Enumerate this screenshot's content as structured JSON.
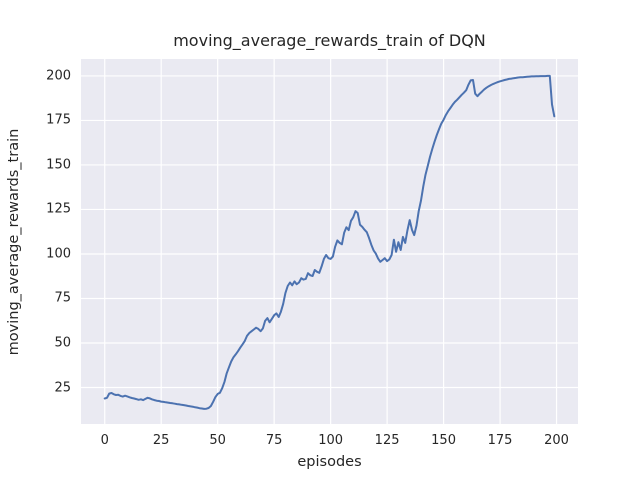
{
  "figure": {
    "title": "moving_average_rewards_train of DQN",
    "xlabel": "episodes",
    "ylabel": "moving_average_rewards_train"
  },
  "chart_data": {
    "type": "line",
    "title": "moving_average_rewards_train of DQN",
    "xlabel": "episodes",
    "ylabel": "moving_average_rewards_train",
    "legend": "none",
    "grid": true,
    "xticks": [
      0,
      25,
      50,
      75,
      100,
      125,
      150,
      175,
      200
    ],
    "yticks": [
      25,
      50,
      75,
      100,
      125,
      150,
      175,
      200
    ],
    "xlim": [
      -10.5,
      209.5
    ],
    "ylim": [
      4.5,
      209.5
    ],
    "style": {
      "figure_bg": "#ffffff",
      "plot_bg": "#eaeaf2",
      "grid_color": "#ffffff",
      "line_color": "#4c72b0",
      "text_color": "#262626",
      "line_width": 2
    },
    "series": [
      {
        "name": "moving_average_rewards_train",
        "x_start": 0,
        "x_step": 1,
        "values": [
          18.8,
          19.2,
          21.6,
          21.9,
          21.2,
          20.8,
          20.9,
          20.3,
          19.9,
          20.4,
          20.0,
          19.5,
          19.1,
          18.8,
          18.5,
          18.1,
          18.4,
          17.9,
          18.6,
          19.2,
          18.9,
          18.3,
          17.9,
          17.6,
          17.4,
          17.1,
          16.9,
          16.7,
          16.5,
          16.3,
          16.1,
          15.9,
          15.7,
          15.5,
          15.3,
          15.1,
          14.9,
          14.6,
          14.4,
          14.2,
          13.9,
          13.7,
          13.4,
          13.2,
          13.0,
          13.1,
          13.5,
          14.6,
          17.0,
          19.6,
          21.4,
          22.0,
          24.6,
          28.2,
          33.0,
          36.4,
          39.6,
          42.0,
          43.6,
          45.4,
          47.4,
          49.2,
          51.2,
          54.0,
          55.6,
          56.6,
          57.6,
          58.6,
          57.9,
          56.6,
          58.2,
          62.4,
          64.0,
          61.6,
          63.6,
          65.6,
          66.6,
          64.6,
          67.6,
          72.0,
          78.0,
          82.0,
          84.0,
          82.4,
          84.6,
          83.0,
          84.0,
          86.4,
          85.6,
          86.0,
          89.2,
          88.0,
          87.6,
          91.0,
          90.0,
          89.4,
          93.0,
          97.2,
          99.4,
          97.6,
          97.2,
          98.6,
          104.0,
          107.6,
          106.2,
          105.4,
          112.0,
          115.0,
          113.4,
          118.6,
          120.6,
          124.0,
          123.0,
          116.4,
          115.2,
          113.6,
          112.2,
          109.0,
          105.2,
          102.0,
          100.2,
          97.4,
          95.6,
          96.6,
          97.6,
          96.0,
          97.0,
          99.4,
          108.0,
          101.2,
          106.6,
          102.2,
          109.6,
          106.2,
          113.2,
          119.0,
          113.5,
          110.6,
          116.0,
          124.0,
          130.0,
          138.0,
          144.5,
          149.5,
          154.5,
          159.0,
          163.0,
          166.8,
          170.2,
          173.2,
          175.4,
          178.0,
          180.2,
          182.0,
          183.8,
          185.4,
          186.6,
          188.0,
          189.4,
          190.6,
          192.0,
          195.0,
          197.5,
          197.7,
          190.0,
          188.6,
          190.0,
          191.2,
          192.4,
          193.4,
          194.2,
          194.9,
          195.5,
          196.0,
          196.5,
          197.0,
          197.3,
          197.7,
          198.0,
          198.3,
          198.5,
          198.7,
          198.9,
          199.1,
          199.2,
          199.3,
          199.4,
          199.5,
          199.6,
          199.7,
          199.7,
          199.8,
          199.8,
          199.9,
          199.9,
          199.9,
          200.0,
          200.0,
          184.0,
          177.3
        ]
      }
    ]
  }
}
